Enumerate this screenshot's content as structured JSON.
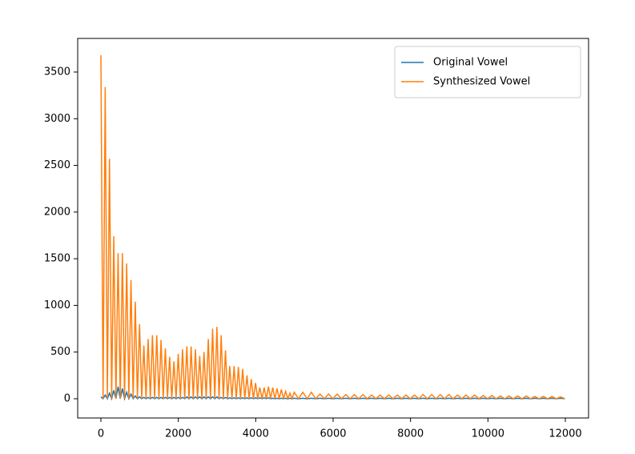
{
  "chart_data": {
    "type": "line",
    "x": [
      0,
      56,
      111,
      167,
      222,
      278,
      333,
      389,
      444,
      500,
      555,
      611,
      666,
      722,
      777,
      833,
      888,
      944,
      999,
      1055,
      1110,
      1166,
      1221,
      1277,
      1332,
      1388,
      1443,
      1499,
      1554,
      1610,
      1665,
      1721,
      1776,
      1832,
      1887,
      1943,
      1998,
      2054,
      2109,
      2165,
      2220,
      2276,
      2331,
      2387,
      2442,
      2498,
      2553,
      2609,
      2664,
      2720,
      2775,
      2831,
      2886,
      2942,
      2997,
      3053,
      3108,
      3164,
      3219,
      3275,
      3330,
      3386,
      3441,
      3497,
      3552,
      3608,
      3663,
      3719,
      3774,
      3830,
      3885,
      3941,
      3996,
      4052,
      4107,
      4163,
      4218,
      4274,
      4329,
      4385,
      4440,
      4496,
      4551,
      4607,
      4662,
      4718,
      4773,
      4829,
      4884,
      4940,
      4995,
      5106,
      5217,
      5328,
      5439,
      5550,
      5661,
      5772,
      5883,
      5994,
      6105,
      6216,
      6327,
      6438,
      6549,
      6660,
      6771,
      6882,
      6993,
      7104,
      7215,
      7326,
      7437,
      7548,
      7659,
      7770,
      7881,
      7992,
      8103,
      8214,
      8325,
      8436,
      8547,
      8658,
      8769,
      8880,
      8991,
      9102,
      9213,
      9324,
      9435,
      9546,
      9657,
      9768,
      9879,
      9990,
      10101,
      10212,
      10323,
      10434,
      10545,
      10656,
      10767,
      10878,
      10989,
      11100,
      11211,
      11322,
      11433,
      11544,
      11655,
      11766,
      11877,
      11988
    ],
    "series": [
      {
        "name": "Original Vowel",
        "color": "#1f77b4",
        "values": [
          20,
          0,
          40,
          0,
          60,
          0,
          90,
          0,
          130,
          0,
          110,
          0,
          70,
          0,
          50,
          0,
          30,
          0,
          20,
          0,
          15,
          0,
          15,
          0,
          15,
          0,
          15,
          0,
          15,
          0,
          15,
          0,
          15,
          0,
          15,
          0,
          15,
          0,
          15,
          0,
          20,
          0,
          20,
          0,
          20,
          0,
          20,
          0,
          20,
          0,
          20,
          0,
          20,
          0,
          20,
          0,
          15,
          0,
          15,
          0,
          10,
          0,
          10,
          0,
          10,
          0,
          10,
          0,
          10,
          0,
          10,
          0,
          10,
          0,
          10,
          0,
          10,
          0,
          10,
          0,
          5,
          0,
          5,
          0,
          5,
          0,
          5,
          0,
          5,
          0,
          5,
          0,
          5,
          0,
          5,
          0,
          5,
          0,
          5,
          0,
          5,
          0,
          5,
          0,
          5,
          0,
          5,
          0,
          5,
          0,
          5,
          0,
          5,
          0,
          5,
          0,
          5,
          0,
          5,
          0,
          5,
          0,
          5,
          0,
          5,
          0,
          5,
          0,
          5,
          0,
          5,
          0,
          5,
          0,
          5,
          0,
          5,
          0,
          5,
          0,
          5,
          0,
          5,
          0,
          5,
          0,
          5,
          0,
          5,
          0,
          5,
          0,
          5,
          0
        ]
      },
      {
        "name": "Synthesized Vowel",
        "color": "#ff7f0e",
        "values": [
          3680,
          0,
          3340,
          0,
          2570,
          0,
          1740,
          0,
          1560,
          0,
          1560,
          0,
          1450,
          0,
          1270,
          0,
          1040,
          0,
          800,
          0,
          570,
          0,
          640,
          0,
          680,
          0,
          680,
          0,
          630,
          0,
          540,
          0,
          450,
          0,
          400,
          0,
          480,
          0,
          530,
          0,
          560,
          0,
          560,
          0,
          530,
          0,
          460,
          0,
          500,
          0,
          640,
          0,
          750,
          0,
          770,
          0,
          680,
          0,
          520,
          0,
          350,
          0,
          350,
          0,
          340,
          0,
          320,
          0,
          250,
          0,
          210,
          0,
          170,
          0,
          120,
          0,
          120,
          0,
          130,
          0,
          120,
          0,
          110,
          0,
          100,
          0,
          80,
          0,
          60,
          0,
          70,
          0,
          70,
          0,
          70,
          0,
          50,
          0,
          50,
          0,
          50,
          0,
          45,
          0,
          45,
          0,
          45,
          0,
          40,
          0,
          40,
          0,
          40,
          0,
          40,
          0,
          40,
          0,
          40,
          0,
          45,
          0,
          45,
          0,
          45,
          0,
          45,
          0,
          40,
          0,
          40,
          0,
          40,
          0,
          35,
          0,
          35,
          0,
          30,
          0,
          30,
          0,
          30,
          0,
          30,
          0,
          25,
          0,
          25,
          0,
          25,
          0,
          20,
          0
        ]
      }
    ],
    "xlim": [
      -600,
      12600
    ],
    "ylim": [
      -206,
      3860
    ],
    "xticks": [
      0,
      2000,
      4000,
      6000,
      8000,
      10000,
      12000
    ],
    "yticks": [
      0,
      500,
      1000,
      1500,
      2000,
      2500,
      3000,
      3500
    ],
    "legend": "upper right"
  }
}
